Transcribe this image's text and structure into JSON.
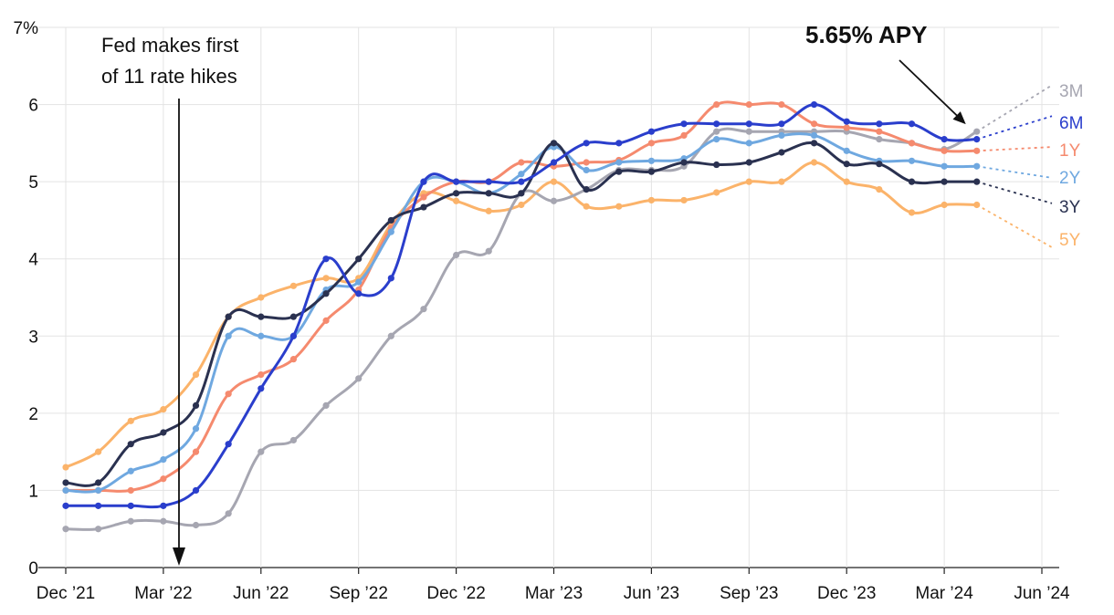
{
  "chart_data": {
    "type": "line",
    "ylim": [
      0,
      7
    ],
    "y_ticks": [
      {
        "value": 0,
        "label": "0"
      },
      {
        "value": 1,
        "label": "1"
      },
      {
        "value": 2,
        "label": "2"
      },
      {
        "value": 3,
        "label": "3"
      },
      {
        "value": 4,
        "label": "4"
      },
      {
        "value": 5,
        "label": "5"
      },
      {
        "value": 6,
        "label": "6"
      },
      {
        "value": 7,
        "label": "7%"
      }
    ],
    "x_ticks": [
      "Dec ’21",
      "Mar ’22",
      "Jun ’22",
      "Sep ’22",
      "Dec ’22",
      "Mar ’23",
      "Jun ’23",
      "Sep ’23",
      "Dec ’23",
      "Mar ’24",
      "Jun ’24"
    ],
    "x_tick_months": [
      0,
      3,
      6,
      9,
      12,
      15,
      18,
      21,
      24,
      27,
      30
    ],
    "grid": true,
    "annotations": [
      {
        "lines": [
          "Fed makes first",
          "of 11 rate hikes"
        ],
        "month": 3.5,
        "arrow": "down"
      },
      {
        "text": "5.65% APY",
        "series": "3M",
        "arrow": "to-last-point"
      }
    ],
    "series": [
      {
        "name": "5Y",
        "color": "#fbb36a",
        "x": [
          0,
          1,
          2,
          3,
          4,
          5,
          6,
          7,
          8,
          9,
          10,
          11,
          12,
          13,
          14,
          15,
          16,
          17,
          18,
          19,
          20,
          21,
          22,
          23,
          24,
          25,
          26,
          27,
          28
        ],
        "values": [
          1.3,
          1.5,
          1.9,
          2.05,
          2.5,
          3.25,
          3.5,
          3.65,
          3.75,
          3.75,
          4.45,
          4.85,
          4.75,
          4.62,
          4.7,
          5.0,
          4.68,
          4.68,
          4.76,
          4.76,
          4.86,
          5.0,
          5.0,
          5.25,
          5.0,
          4.9,
          4.6,
          4.7,
          4.7
        ],
        "end_extension": 4.15
      },
      {
        "name": "3M",
        "color": "#a6a6b1",
        "x": [
          0,
          1,
          2,
          3,
          4,
          5,
          6,
          7,
          8,
          9,
          10,
          11,
          12,
          13,
          14,
          15,
          16,
          17,
          18,
          19,
          20,
          21,
          22,
          23,
          24,
          25,
          26,
          27,
          28
        ],
        "values": [
          0.5,
          0.5,
          0.6,
          0.6,
          0.55,
          0.7,
          1.5,
          1.65,
          2.1,
          2.45,
          3.0,
          3.35,
          4.05,
          4.1,
          4.85,
          4.75,
          4.9,
          5.15,
          5.15,
          5.2,
          5.65,
          5.65,
          5.65,
          5.65,
          5.65,
          5.55,
          5.5,
          5.42,
          5.65
        ],
        "end_extension": 6.25
      },
      {
        "name": "1Y",
        "color": "#f58a6e",
        "x": [
          0,
          1,
          2,
          3,
          4,
          5,
          6,
          7,
          8,
          9,
          10,
          11,
          12,
          13,
          14,
          15,
          16,
          17,
          18,
          19,
          20,
          21,
          22,
          23,
          24,
          25,
          26,
          27,
          28
        ],
        "values": [
          1.0,
          1.0,
          1.0,
          1.15,
          1.5,
          2.25,
          2.5,
          2.7,
          3.2,
          3.6,
          4.4,
          4.8,
          5.0,
          5.0,
          5.25,
          5.2,
          5.25,
          5.28,
          5.5,
          5.6,
          6.0,
          6.0,
          6.0,
          5.75,
          5.7,
          5.65,
          5.5,
          5.4,
          5.4
        ],
        "end_extension": 5.45
      },
      {
        "name": "2Y",
        "color": "#6fa8e0",
        "x": [
          0,
          1,
          2,
          3,
          4,
          5,
          6,
          7,
          8,
          9,
          10,
          11,
          12,
          13,
          14,
          15,
          16,
          17,
          18,
          19,
          20,
          21,
          22,
          23,
          24,
          25,
          26,
          27,
          28
        ],
        "values": [
          1.0,
          1.0,
          1.25,
          1.4,
          1.8,
          3.0,
          3.0,
          3.0,
          3.6,
          3.7,
          4.35,
          5.0,
          5.0,
          4.85,
          5.1,
          5.45,
          5.15,
          5.25,
          5.27,
          5.3,
          5.55,
          5.5,
          5.6,
          5.6,
          5.4,
          5.27,
          5.27,
          5.2,
          5.2
        ],
        "end_extension": 5.05
      },
      {
        "name": "3Y",
        "color": "#2a3150",
        "x": [
          0,
          1,
          2,
          3,
          4,
          5,
          6,
          7,
          8,
          9,
          10,
          11,
          12,
          13,
          14,
          15,
          16,
          17,
          18,
          19,
          20,
          21,
          22,
          23,
          24,
          25,
          26,
          27,
          28
        ],
        "values": [
          1.1,
          1.1,
          1.6,
          1.75,
          2.1,
          3.25,
          3.25,
          3.25,
          3.55,
          4.0,
          4.5,
          4.67,
          4.85,
          4.85,
          4.85,
          5.5,
          4.9,
          5.13,
          5.13,
          5.25,
          5.22,
          5.25,
          5.38,
          5.5,
          5.23,
          5.23,
          5.0,
          5.0,
          5.0
        ],
        "end_extension": 4.72
      },
      {
        "name": "6M",
        "color": "#2a3ecc",
        "x": [
          0,
          1,
          2,
          3,
          4,
          5,
          6,
          7,
          8,
          9,
          10,
          11,
          12,
          13,
          14,
          15,
          16,
          17,
          18,
          19,
          20,
          21,
          22,
          23,
          24,
          25,
          26,
          27,
          28
        ],
        "values": [
          0.8,
          0.8,
          0.8,
          0.8,
          1.0,
          1.6,
          2.32,
          3.0,
          4.0,
          3.55,
          3.75,
          5.0,
          5.0,
          5.0,
          5.0,
          5.25,
          5.5,
          5.5,
          5.65,
          5.75,
          5.75,
          5.75,
          5.75,
          6.0,
          5.78,
          5.75,
          5.75,
          5.55,
          5.55
        ],
        "end_extension": 5.85
      }
    ]
  }
}
